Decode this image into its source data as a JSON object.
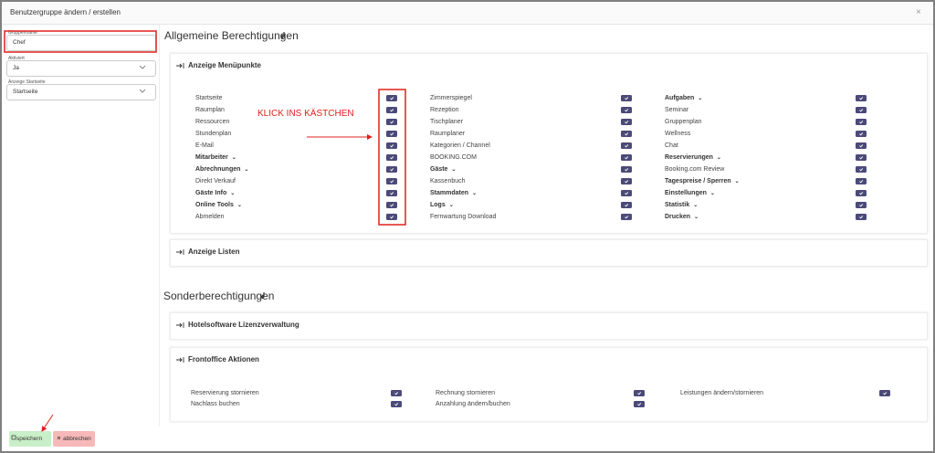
{
  "dialog": {
    "title": "Benutzergruppe ändern / erstellen",
    "close": "×"
  },
  "fields": [
    {
      "label": "Gruppenname",
      "value": "Chef"
    },
    {
      "label": "Aktiviert",
      "value": "Ja"
    },
    {
      "label": "Anzeige Startseite",
      "value": "Startseite"
    }
  ],
  "general": {
    "title": "Allgemeine Berechtigungen",
    "panels": [
      {
        "title": "Anzeige Menüpunkte",
        "columns": [
          [
            {
              "label": "Startseite"
            },
            {
              "label": "Raumplan"
            },
            {
              "label": "Ressourcen"
            },
            {
              "label": "Stundenplan"
            },
            {
              "label": "E-Mail"
            },
            {
              "label": "Mitarbeiter",
              "group": true
            },
            {
              "label": "Abrechnungen",
              "group": true
            },
            {
              "label": "Direkt Verkauf"
            },
            {
              "label": "Gäste Info",
              "group": true
            },
            {
              "label": "Online Tools",
              "group": true
            },
            {
              "label": "Abmelden"
            }
          ],
          [
            {
              "label": "Zimmerspiegel"
            },
            {
              "label": "Rezeption"
            },
            {
              "label": "Tischplaner"
            },
            {
              "label": "Raumplaner"
            },
            {
              "label": "Kategorien / Channel"
            },
            {
              "label": "BOOKING.COM"
            },
            {
              "label": "Gäste",
              "group": true
            },
            {
              "label": "Kassenbuch"
            },
            {
              "label": "Stammdaten",
              "group": true
            },
            {
              "label": "Logs",
              "group": true
            },
            {
              "label": "Fernwartung Download"
            }
          ],
          [
            {
              "label": "Aufgaben",
              "group": true
            },
            {
              "label": "Seminar"
            },
            {
              "label": "Gruppenplan"
            },
            {
              "label": "Wellness"
            },
            {
              "label": "Chat"
            },
            {
              "label": "Reservierungen",
              "group": true
            },
            {
              "label": "Booking.com Review"
            },
            {
              "label": "Tagespreise / Sperren",
              "group": true
            },
            {
              "label": "Einstellungen",
              "group": true
            },
            {
              "label": "Statistik",
              "group": true
            },
            {
              "label": "Drucken",
              "group": true
            }
          ]
        ]
      },
      {
        "title": "Anzeige Listen"
      }
    ]
  },
  "special": {
    "title": "Sonderberechtigungen",
    "panels": [
      {
        "title": "Hotelsoftware Lizenzverwaltung"
      },
      {
        "title": "Frontoffice Aktionen",
        "columns": [
          [
            {
              "label": "Reservierung stornieren"
            },
            {
              "label": "Nachlass buchen"
            }
          ],
          [
            {
              "label": "Rechnung stornieren"
            },
            {
              "label": "Anzahlung ändern/buchen"
            }
          ],
          [
            {
              "label": "Leistungen ändern/stornieren"
            }
          ]
        ]
      }
    ]
  },
  "annotation": "KLICK INS KÄSTCHEN",
  "buttons": {
    "save": "speichern",
    "cancel": "abbrechen"
  }
}
